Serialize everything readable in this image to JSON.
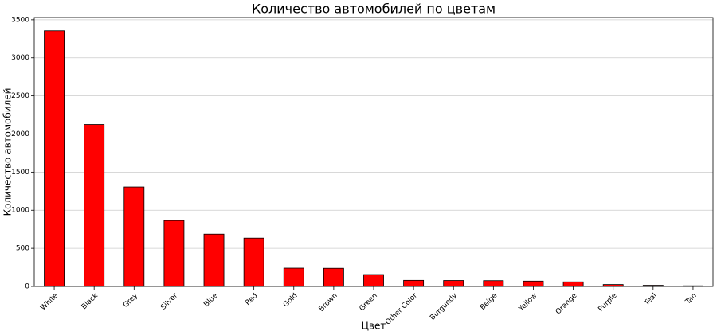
{
  "chart_data": {
    "type": "bar",
    "title": "Количество автомобилей по цветам",
    "x_label": "Цвет",
    "y_label": "Количество автомобилей",
    "categories": [
      "White",
      "Black",
      "Grey",
      "Silver",
      "Blue",
      "Red",
      "Gold",
      "Brown",
      "Green",
      "Other Color",
      "Burgundy",
      "Beige",
      "Yellow",
      "Orange",
      "Purple",
      "Teal",
      "Tan"
    ],
    "values": [
      3355,
      2125,
      1305,
      865,
      687,
      635,
      240,
      238,
      156,
      80,
      78,
      76,
      70,
      60,
      25,
      15,
      8
    ],
    "color": "#ff0000",
    "edgecolor": "#000000",
    "ylim": [
      0,
      3530
    ],
    "yticks": [
      0,
      500,
      1000,
      1500,
      2000,
      2500,
      3000,
      3500
    ],
    "grid": true
  }
}
